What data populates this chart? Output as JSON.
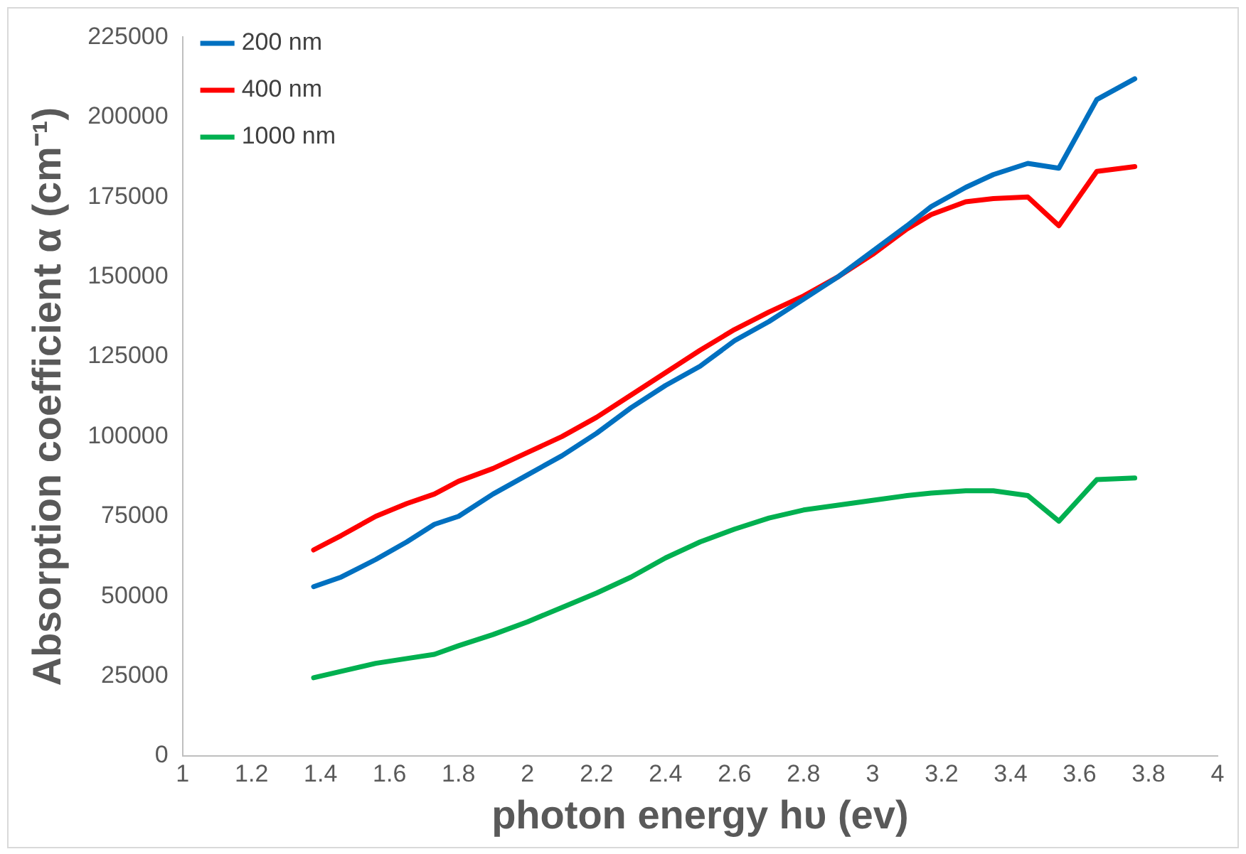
{
  "chart_data": {
    "type": "line",
    "xlabel": "photon energy hυ (ev)",
    "ylabel": "Absorption coefficient α (cm⁻¹)",
    "x": [
      1.38,
      1.46,
      1.56,
      1.65,
      1.73,
      1.8,
      1.9,
      2.0,
      2.1,
      2.2,
      2.3,
      2.4,
      2.5,
      2.6,
      2.7,
      2.8,
      2.9,
      3.0,
      3.1,
      3.17,
      3.27,
      3.35,
      3.45,
      3.54,
      3.65,
      3.76
    ],
    "series": [
      {
        "name": "200 nm",
        "color": "#0070c0",
        "values": [
          53000,
          56000,
          61500,
          67000,
          72500,
          75000,
          82000,
          88000,
          94000,
          101000,
          109000,
          116000,
          122000,
          130000,
          136000,
          143000,
          150000,
          158000,
          166000,
          172000,
          178000,
          182000,
          185500,
          184000,
          205500,
          212000
        ]
      },
      {
        "name": "400 nm",
        "color": "#ff0000",
        "values": [
          64500,
          69000,
          75000,
          79000,
          82000,
          86000,
          90000,
          95000,
          100000,
          106000,
          113000,
          120000,
          127000,
          133500,
          139000,
          144000,
          150000,
          157000,
          165000,
          169500,
          173500,
          174500,
          175000,
          166000,
          183000,
          184500
        ]
      },
      {
        "name": "1000 nm",
        "color": "#00b050",
        "values": [
          24500,
          26500,
          29000,
          30500,
          31800,
          34500,
          38000,
          42000,
          46500,
          51000,
          56000,
          62000,
          67000,
          71000,
          74500,
          77000,
          78500,
          80000,
          81500,
          82300,
          83000,
          83000,
          81500,
          73500,
          86500,
          87000
        ]
      }
    ],
    "xlim": [
      1,
      4
    ],
    "xticks": [
      1,
      {
        "value": 1.2,
        "label": "1.2"
      },
      {
        "value": 1.4,
        "label": "1.4"
      },
      {
        "value": 1.6,
        "label": "1.6"
      },
      {
        "value": 1.8,
        "label": "1.8"
      },
      2,
      {
        "value": 2.2,
        "label": "2.2"
      },
      {
        "value": 2.4,
        "label": "2.4"
      },
      {
        "value": 2.6,
        "label": "2.6"
      },
      {
        "value": 2.8,
        "label": "2.8"
      },
      3,
      {
        "value": 3.2,
        "label": "3.2"
      },
      {
        "value": 3.4,
        "label": "3.4"
      },
      {
        "value": 3.6,
        "label": "3.6"
      },
      {
        "value": 3.8,
        "label": "3.8"
      },
      4
    ],
    "ylim": [
      0,
      225000
    ],
    "yticks": [
      0,
      25000,
      50000,
      75000,
      100000,
      125000,
      150000,
      175000,
      200000,
      225000
    ],
    "grid": false,
    "legend": "top left",
    "marker": "none",
    "line_style": "solid"
  }
}
